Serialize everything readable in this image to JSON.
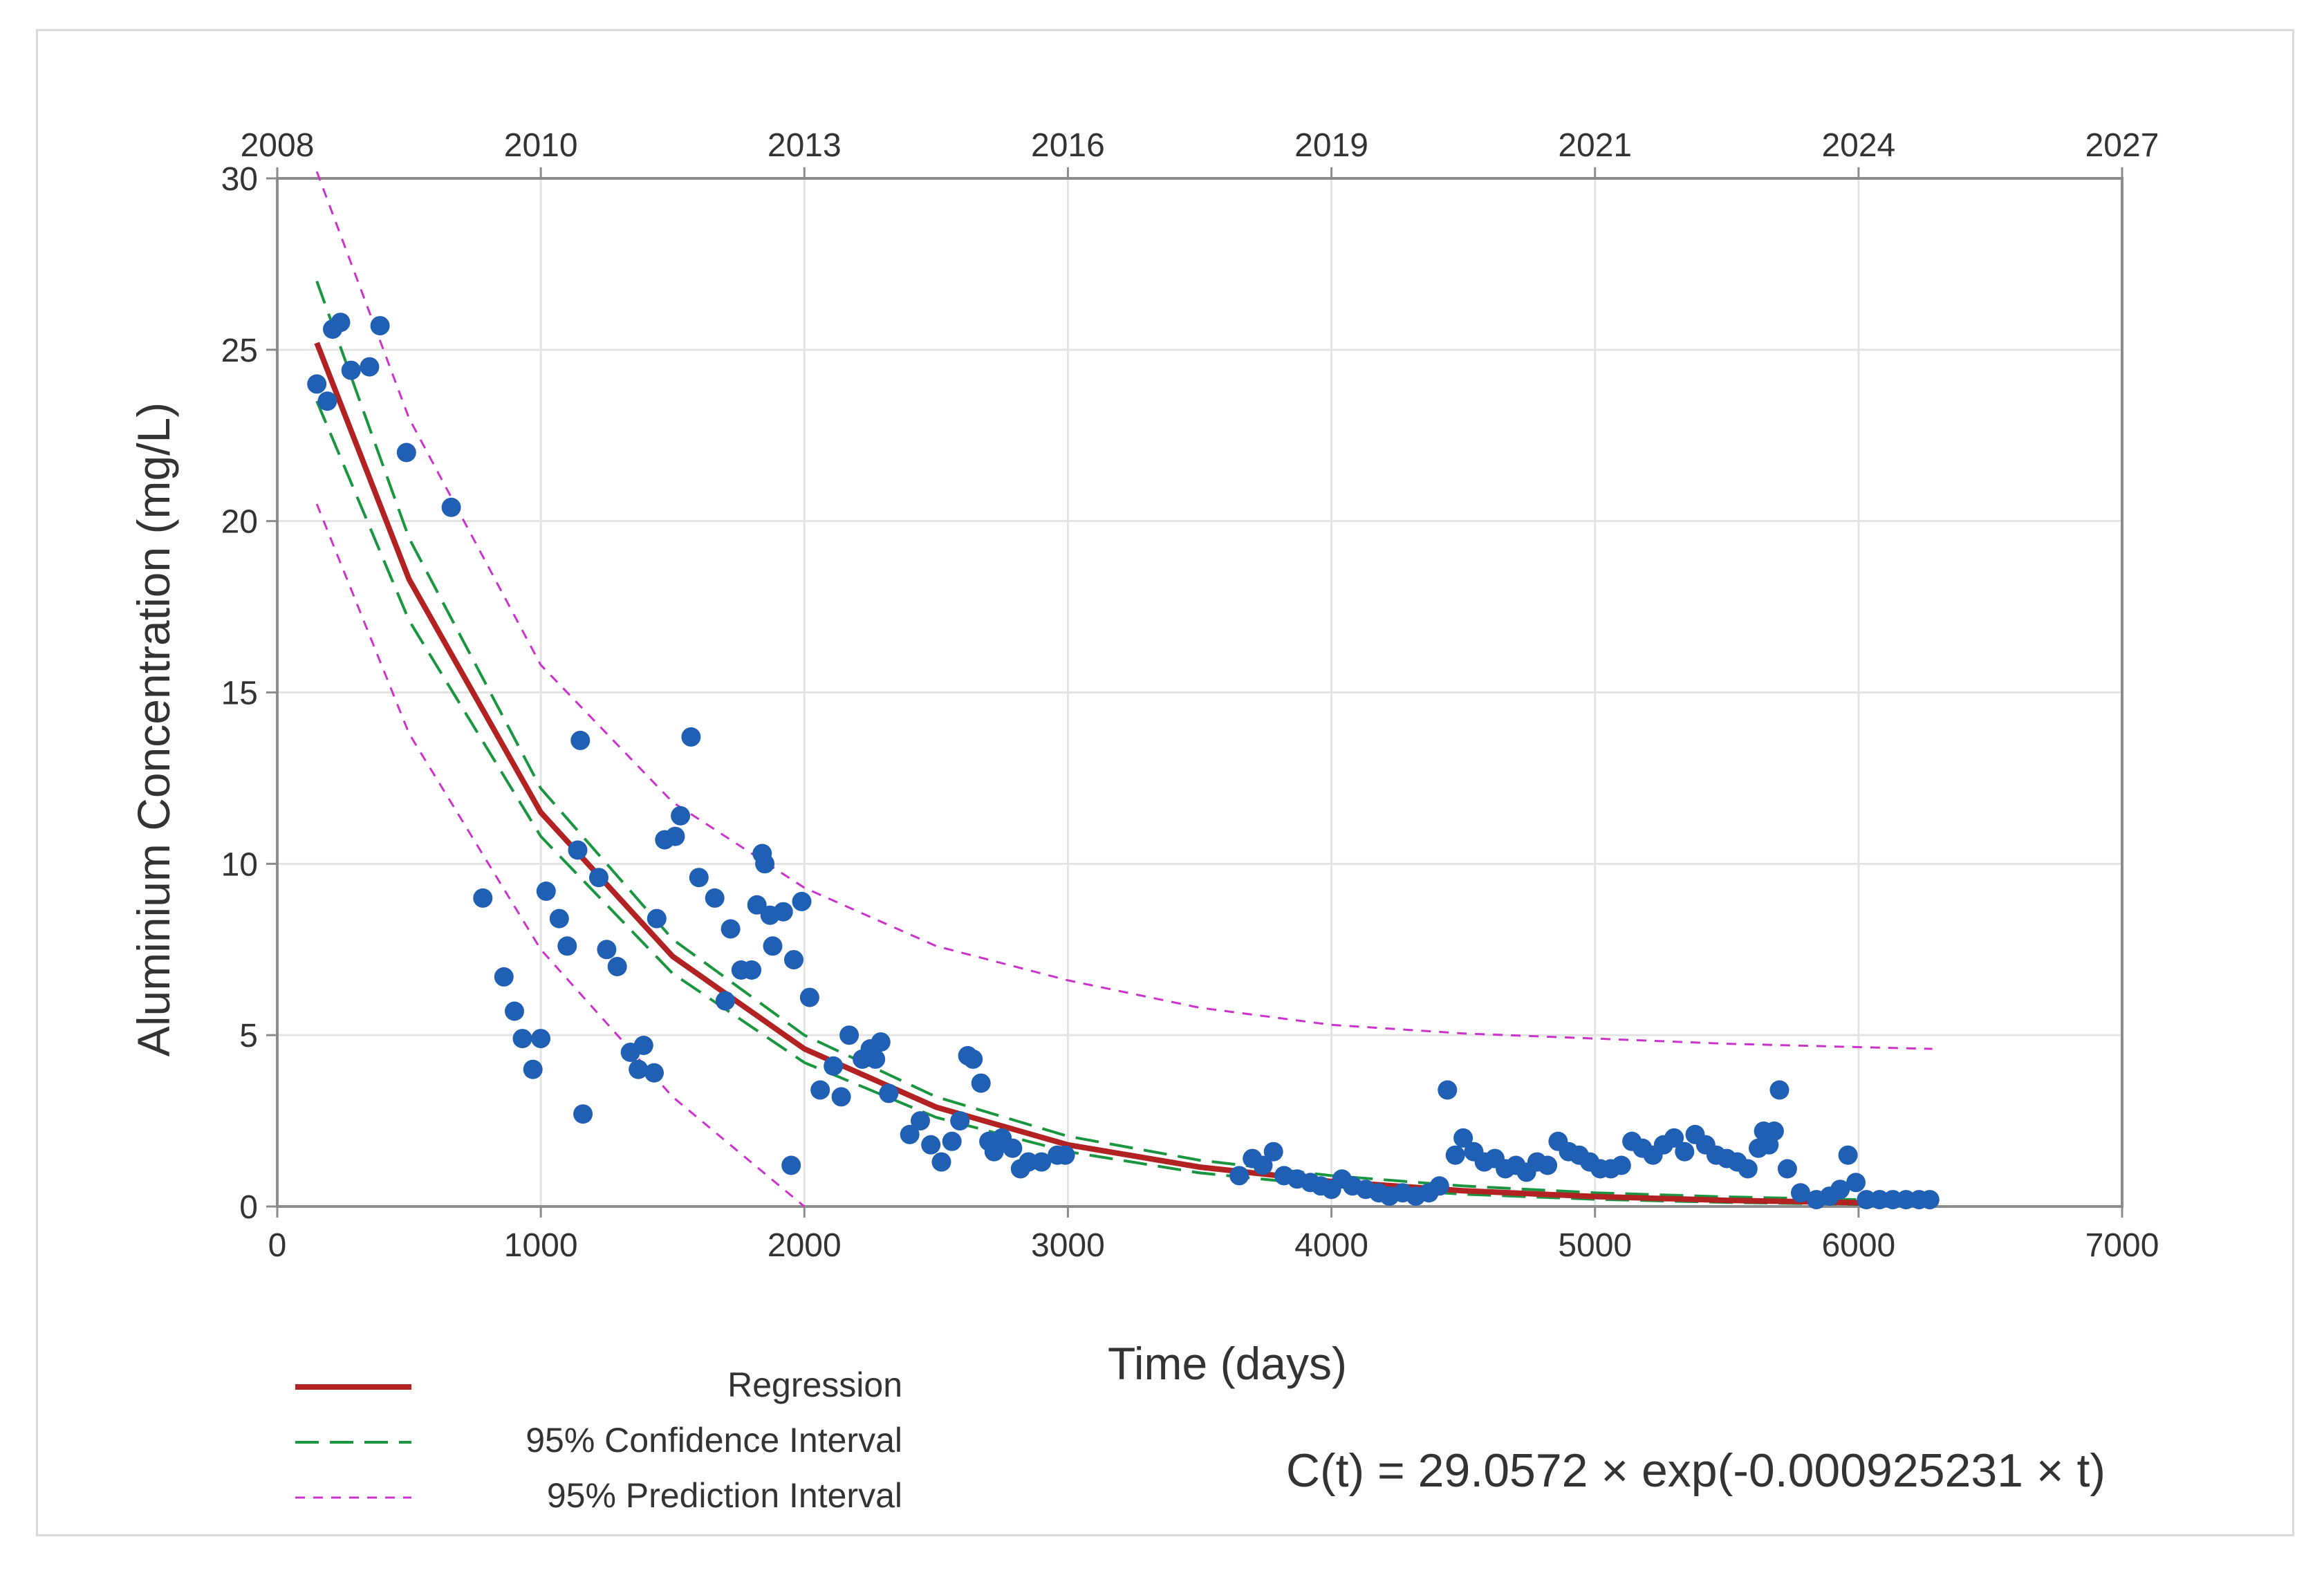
{
  "chart_data": {
    "type": "scatter",
    "xlabel": "Time (days)",
    "ylabel": "Aluminium Concentration (mg/L)",
    "xlim": [
      0,
      7000
    ],
    "ylim": [
      0,
      30
    ],
    "x_ticks": [
      0,
      1000,
      2000,
      3000,
      4000,
      5000,
      6000,
      7000
    ],
    "y_ticks": [
      0,
      5,
      10,
      15,
      20,
      25,
      30
    ],
    "top_axis": {
      "label_values": [
        "2008",
        "2010",
        "2013",
        "2016",
        "2019",
        "2021",
        "2024",
        "2027"
      ],
      "positions_days": [
        0,
        1000,
        2000,
        3000,
        4000,
        5000,
        6000,
        7000
      ]
    },
    "grid": true,
    "legend": {
      "position": "bottom-left",
      "entries": [
        {
          "label": "Regression",
          "style": "solid",
          "color": "#b22222"
        },
        {
          "label": "95% Confidence Interval",
          "style": "long-dash",
          "color": "#1a9641"
        },
        {
          "label": "95% Prediction Interval",
          "style": "short-dash",
          "color": "#cc33cc"
        }
      ]
    },
    "equation": "C(t) = 29.0572 × exp(-0.000925231 × t)",
    "model": {
      "a": 29.0572,
      "k": -0.000925231,
      "t_range": [
        150,
        6280
      ]
    },
    "series": [
      {
        "name": "Regression",
        "type": "line",
        "color": "#b22222",
        "x": [
          150,
          500,
          1000,
          1500,
          2000,
          2500,
          3000,
          3500,
          4000,
          4500,
          5000,
          5500,
          6000,
          6280
        ],
        "y": [
          25.2,
          18.3,
          11.5,
          7.3,
          4.6,
          2.9,
          1.8,
          1.15,
          0.73,
          0.46,
          0.29,
          0.18,
          0.11,
          0.09
        ]
      },
      {
        "name": "95% Confidence Interval (upper)",
        "type": "line",
        "color": "#1a9641",
        "x": [
          150,
          500,
          1000,
          1500,
          2000,
          2500,
          3000,
          3500,
          4000,
          4500,
          5000,
          5500,
          6000,
          6280
        ],
        "y": [
          27.0,
          19.5,
          12.2,
          7.8,
          5.0,
          3.2,
          2.05,
          1.35,
          0.9,
          0.6,
          0.4,
          0.28,
          0.2,
          0.17
        ]
      },
      {
        "name": "95% Confidence Interval (lower)",
        "type": "line",
        "color": "#1a9641",
        "x": [
          150,
          500,
          1000,
          1500,
          2000,
          2500,
          3000,
          3500,
          4000,
          4500,
          5000,
          5500,
          6000,
          6280
        ],
        "y": [
          23.5,
          17.1,
          10.8,
          6.8,
          4.2,
          2.6,
          1.6,
          0.98,
          0.6,
          0.36,
          0.21,
          0.12,
          0.06,
          0.04
        ]
      },
      {
        "name": "95% Prediction Interval (upper)",
        "type": "line",
        "color": "#cc33cc",
        "x": [
          150,
          500,
          1000,
          1500,
          2000,
          2500,
          3000,
          3500,
          4000,
          4500,
          5000,
          5500,
          6000,
          6280
        ],
        "y": [
          30.2,
          23.0,
          15.8,
          11.8,
          9.3,
          7.6,
          6.6,
          5.8,
          5.3,
          5.05,
          4.9,
          4.75,
          4.65,
          4.6
        ]
      },
      {
        "name": "95% Prediction Interval (lower)",
        "type": "line",
        "color": "#cc33cc",
        "x": [
          150,
          500,
          1000,
          1500,
          2000
        ],
        "y": [
          20.5,
          13.8,
          7.5,
          3.2,
          0.0
        ]
      },
      {
        "name": "Observations",
        "type": "scatter",
        "color": "#1f5fb4",
        "points": [
          [
            150,
            24.0
          ],
          [
            190,
            23.5
          ],
          [
            210,
            25.6
          ],
          [
            240,
            25.8
          ],
          [
            280,
            24.4
          ],
          [
            350,
            24.5
          ],
          [
            390,
            25.7
          ],
          [
            490,
            22.0
          ],
          [
            660,
            20.4
          ],
          [
            780,
            9.0
          ],
          [
            860,
            6.7
          ],
          [
            900,
            5.7
          ],
          [
            930,
            4.9
          ],
          [
            970,
            4.0
          ],
          [
            1000,
            4.9
          ],
          [
            1020,
            9.2
          ],
          [
            1070,
            8.4
          ],
          [
            1100,
            7.6
          ],
          [
            1140,
            10.4
          ],
          [
            1150,
            13.6
          ],
          [
            1160,
            2.7
          ],
          [
            1220,
            9.6
          ],
          [
            1250,
            7.5
          ],
          [
            1290,
            7.0
          ],
          [
            1340,
            4.5
          ],
          [
            1370,
            4.0
          ],
          [
            1390,
            4.7
          ],
          [
            1430,
            3.9
          ],
          [
            1440,
            8.4
          ],
          [
            1470,
            10.7
          ],
          [
            1510,
            10.8
          ],
          [
            1530,
            11.4
          ],
          [
            1570,
            13.7
          ],
          [
            1600,
            9.6
          ],
          [
            1660,
            9.0
          ],
          [
            1700,
            6.0
          ],
          [
            1720,
            8.1
          ],
          [
            1760,
            6.9
          ],
          [
            1800,
            6.9
          ],
          [
            1820,
            8.8
          ],
          [
            1840,
            10.3
          ],
          [
            1850,
            10.0
          ],
          [
            1870,
            8.5
          ],
          [
            1880,
            7.6
          ],
          [
            1920,
            8.6
          ],
          [
            1950,
            1.2
          ],
          [
            1960,
            7.2
          ],
          [
            1990,
            8.9
          ],
          [
            2020,
            6.1
          ],
          [
            2060,
            3.4
          ],
          [
            2110,
            4.1
          ],
          [
            2140,
            3.2
          ],
          [
            2170,
            5.0
          ],
          [
            2220,
            4.3
          ],
          [
            2250,
            4.6
          ],
          [
            2270,
            4.3
          ],
          [
            2290,
            4.8
          ],
          [
            2320,
            3.3
          ],
          [
            2400,
            2.1
          ],
          [
            2440,
            2.5
          ],
          [
            2480,
            1.8
          ],
          [
            2520,
            1.3
          ],
          [
            2560,
            1.9
          ],
          [
            2590,
            2.5
          ],
          [
            2620,
            4.4
          ],
          [
            2640,
            4.3
          ],
          [
            2670,
            3.6
          ],
          [
            2700,
            1.9
          ],
          [
            2720,
            1.6
          ],
          [
            2750,
            2.0
          ],
          [
            2790,
            1.7
          ],
          [
            2820,
            1.1
          ],
          [
            2850,
            1.3
          ],
          [
            2900,
            1.3
          ],
          [
            2960,
            1.5
          ],
          [
            2990,
            1.5
          ],
          [
            3650,
            0.9
          ],
          [
            3700,
            1.4
          ],
          [
            3740,
            1.2
          ],
          [
            3780,
            1.6
          ],
          [
            3820,
            0.9
          ],
          [
            3870,
            0.8
          ],
          [
            3920,
            0.7
          ],
          [
            3960,
            0.6
          ],
          [
            4000,
            0.5
          ],
          [
            4040,
            0.8
          ],
          [
            4080,
            0.6
          ],
          [
            4130,
            0.5
          ],
          [
            4180,
            0.4
          ],
          [
            4220,
            0.3
          ],
          [
            4270,
            0.4
          ],
          [
            4320,
            0.3
          ],
          [
            4370,
            0.4
          ],
          [
            4410,
            0.6
          ],
          [
            4440,
            3.4
          ],
          [
            4470,
            1.5
          ],
          [
            4500,
            2.0
          ],
          [
            4540,
            1.6
          ],
          [
            4580,
            1.3
          ],
          [
            4620,
            1.4
          ],
          [
            4660,
            1.1
          ],
          [
            4700,
            1.2
          ],
          [
            4740,
            1.0
          ],
          [
            4780,
            1.3
          ],
          [
            4820,
            1.2
          ],
          [
            4860,
            1.9
          ],
          [
            4900,
            1.6
          ],
          [
            4940,
            1.5
          ],
          [
            4980,
            1.3
          ],
          [
            5020,
            1.1
          ],
          [
            5060,
            1.1
          ],
          [
            5100,
            1.2
          ],
          [
            5140,
            1.9
          ],
          [
            5180,
            1.7
          ],
          [
            5220,
            1.5
          ],
          [
            5260,
            1.8
          ],
          [
            5300,
            2.0
          ],
          [
            5340,
            1.6
          ],
          [
            5380,
            2.1
          ],
          [
            5420,
            1.8
          ],
          [
            5460,
            1.5
          ],
          [
            5500,
            1.4
          ],
          [
            5540,
            1.3
          ],
          [
            5580,
            1.1
          ],
          [
            5620,
            1.7
          ],
          [
            5640,
            2.2
          ],
          [
            5660,
            1.8
          ],
          [
            5680,
            2.2
          ],
          [
            5700,
            3.4
          ],
          [
            5730,
            1.1
          ],
          [
            5780,
            0.4
          ],
          [
            5840,
            0.2
          ],
          [
            5890,
            0.3
          ],
          [
            5930,
            0.5
          ],
          [
            5960,
            1.5
          ],
          [
            5990,
            0.7
          ],
          [
            6030,
            0.2
          ],
          [
            6080,
            0.2
          ],
          [
            6130,
            0.2
          ],
          [
            6180,
            0.2
          ],
          [
            6230,
            0.2
          ],
          [
            6270,
            0.2
          ]
        ]
      }
    ]
  }
}
